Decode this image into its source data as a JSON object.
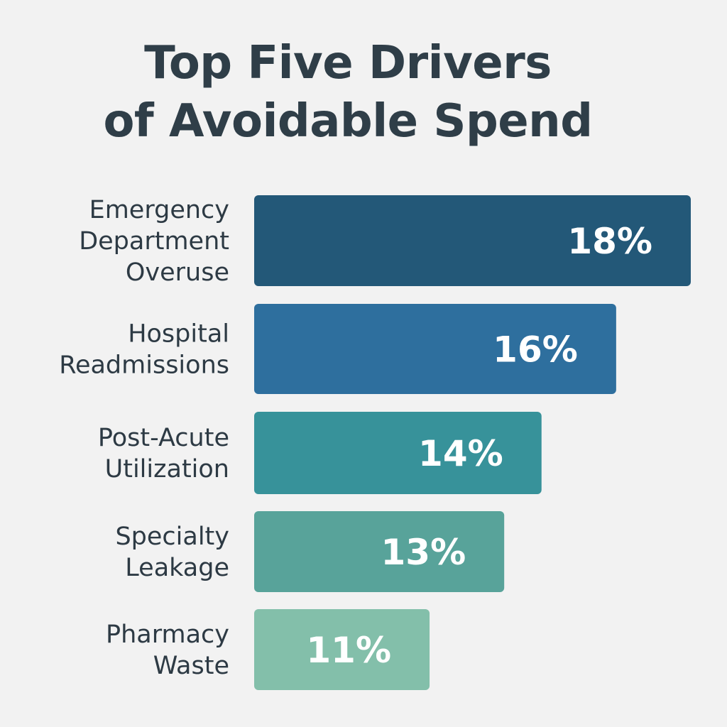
{
  "chart_data": {
    "type": "bar",
    "orientation": "horizontal",
    "title": "Top Five Drivers of Avoidable Spend",
    "title_lines": [
      "Top Five Drivers",
      "of Avoidable Spend"
    ],
    "categories": [
      [
        "Emergency",
        "Department",
        "Overuse"
      ],
      [
        "Hospital",
        "Readmissions"
      ],
      [
        "Post-Acute",
        "Utilization"
      ],
      [
        "Specialty",
        "Leakage"
      ],
      [
        "Pharmacy",
        "Waste"
      ]
    ],
    "values": [
      18,
      16,
      14,
      13,
      11
    ],
    "data_labels": [
      "18%",
      "16%",
      "14%",
      "13%",
      "11%"
    ],
    "unit": "%",
    "colors": [
      "#235878",
      "#2e6f9e",
      "#37929a",
      "#58a39a",
      "#83bfaa"
    ],
    "grid": false,
    "legend": "none",
    "xlabel": "",
    "ylabel": ""
  }
}
